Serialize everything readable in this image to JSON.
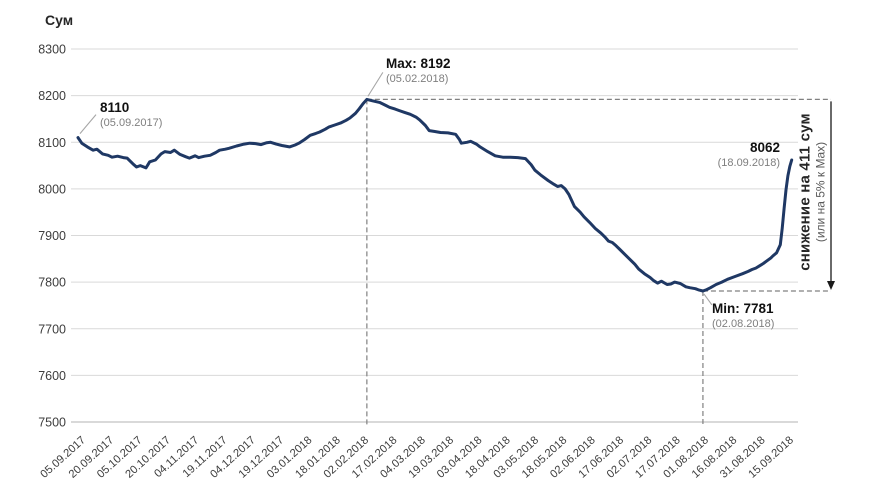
{
  "chart_data": {
    "type": "line",
    "title": "",
    "ylabel": "Сум",
    "xlabel": "",
    "ylim": [
      7500,
      8300
    ],
    "y_ticks": [
      8300,
      8200,
      8100,
      8000,
      7900,
      7800,
      7700,
      7600,
      7500
    ],
    "x_tick_interval_days": 15,
    "x_tick_labels": [
      "05.09.2017",
      "20.09.2017",
      "05.10.2017",
      "20.10.2017",
      "04.11.2017",
      "19.11.2017",
      "04.12.2017",
      "19.12.2017",
      "03.01.2018",
      "18.01.2018",
      "02.02.2018",
      "17.02.2018",
      "04.03.2018",
      "19.03.2018",
      "03.04.2018",
      "18.04.2018",
      "03.05.2018",
      "18.05.2018",
      "02.06.2018",
      "17.06.2018",
      "02.07.2018",
      "17.07.2018",
      "01.08.2018",
      "16.08.2018",
      "31.08.2018",
      "15.09.2018"
    ],
    "grid": "horizontal",
    "legend": "none",
    "series": [
      {
        "name": "Сум",
        "color": "#1f3864",
        "points": [
          [
            0,
            8110
          ],
          [
            2,
            8098
          ],
          [
            5,
            8090
          ],
          [
            8,
            8083
          ],
          [
            10,
            8085
          ],
          [
            13,
            8075
          ],
          [
            16,
            8072
          ],
          [
            18,
            8068
          ],
          [
            21,
            8070
          ],
          [
            24,
            8067
          ],
          [
            26,
            8066
          ],
          [
            29,
            8054
          ],
          [
            31,
            8047
          ],
          [
            33,
            8050
          ],
          [
            36,
            8045
          ],
          [
            38,
            8058
          ],
          [
            41,
            8062
          ],
          [
            44,
            8075
          ],
          [
            46,
            8080
          ],
          [
            49,
            8078
          ],
          [
            51,
            8083
          ],
          [
            54,
            8074
          ],
          [
            57,
            8069
          ],
          [
            59,
            8066
          ],
          [
            62,
            8071
          ],
          [
            64,
            8067
          ],
          [
            67,
            8070
          ],
          [
            70,
            8072
          ],
          [
            73,
            8078
          ],
          [
            75,
            8083
          ],
          [
            78,
            8085
          ],
          [
            80,
            8087
          ],
          [
            84,
            8092
          ],
          [
            88,
            8096
          ],
          [
            91,
            8098
          ],
          [
            94,
            8097
          ],
          [
            97,
            8095
          ],
          [
            100,
            8099
          ],
          [
            102,
            8100
          ],
          [
            105,
            8096
          ],
          [
            108,
            8093
          ],
          [
            112,
            8090
          ],
          [
            115,
            8094
          ],
          [
            117,
            8098
          ],
          [
            120,
            8106
          ],
          [
            123,
            8115
          ],
          [
            126,
            8119
          ],
          [
            128,
            8122
          ],
          [
            131,
            8128
          ],
          [
            133,
            8133
          ],
          [
            136,
            8137
          ],
          [
            139,
            8141
          ],
          [
            142,
            8147
          ],
          [
            144,
            8152
          ],
          [
            147,
            8162
          ],
          [
            149,
            8172
          ],
          [
            151,
            8183
          ],
          [
            153,
            8192
          ],
          [
            156,
            8189
          ],
          [
            160,
            8185
          ],
          [
            163,
            8179
          ],
          [
            165,
            8175
          ],
          [
            168,
            8171
          ],
          [
            170,
            8168
          ],
          [
            173,
            8164
          ],
          [
            176,
            8160
          ],
          [
            179,
            8154
          ],
          [
            181,
            8148
          ],
          [
            184,
            8136
          ],
          [
            186,
            8125
          ],
          [
            189,
            8123
          ],
          [
            192,
            8121
          ],
          [
            196,
            8120
          ],
          [
            200,
            8117
          ],
          [
            202,
            8106
          ],
          [
            203,
            8098
          ],
          [
            206,
            8100
          ],
          [
            208,
            8102
          ],
          [
            211,
            8096
          ],
          [
            213,
            8090
          ],
          [
            217,
            8080
          ],
          [
            221,
            8071
          ],
          [
            225,
            8068
          ],
          [
            229,
            8068
          ],
          [
            233,
            8067
          ],
          [
            237,
            8065
          ],
          [
            240,
            8052
          ],
          [
            242,
            8040
          ],
          [
            245,
            8030
          ],
          [
            249,
            8018
          ],
          [
            252,
            8010
          ],
          [
            254,
            8005
          ],
          [
            256,
            8007
          ],
          [
            258,
            8000
          ],
          [
            260,
            7988
          ],
          [
            263,
            7962
          ],
          [
            266,
            7950
          ],
          [
            268,
            7940
          ],
          [
            271,
            7928
          ],
          [
            274,
            7915
          ],
          [
            277,
            7905
          ],
          [
            279,
            7897
          ],
          [
            281,
            7888
          ],
          [
            283,
            7885
          ],
          [
            285,
            7878
          ],
          [
            287,
            7870
          ],
          [
            290,
            7858
          ],
          [
            292,
            7850
          ],
          [
            295,
            7838
          ],
          [
            297,
            7828
          ],
          [
            300,
            7818
          ],
          [
            303,
            7810
          ],
          [
            305,
            7803
          ],
          [
            307,
            7798
          ],
          [
            309,
            7802
          ],
          [
            312,
            7795
          ],
          [
            314,
            7796
          ],
          [
            316,
            7800
          ],
          [
            319,
            7797
          ],
          [
            322,
            7790
          ],
          [
            324,
            7788
          ],
          [
            327,
            7786
          ],
          [
            329,
            7783
          ],
          [
            331,
            7781
          ],
          [
            333,
            7784
          ],
          [
            335,
            7788
          ],
          [
            338,
            7795
          ],
          [
            341,
            7800
          ],
          [
            344,
            7806
          ],
          [
            348,
            7812
          ],
          [
            352,
            7818
          ],
          [
            355,
            7823
          ],
          [
            357,
            7827
          ],
          [
            359,
            7830
          ],
          [
            361,
            7835
          ],
          [
            363,
            7840
          ],
          [
            365,
            7846
          ],
          [
            367,
            7852
          ],
          [
            368,
            7856
          ],
          [
            370,
            7863
          ],
          [
            372,
            7880
          ],
          [
            373,
            7915
          ],
          [
            374,
            7958
          ],
          [
            375,
            7998
          ],
          [
            376,
            8028
          ],
          [
            377,
            8048
          ],
          [
            378,
            8062
          ]
        ]
      }
    ],
    "annotations": {
      "start": {
        "value": "8110",
        "date": "(05.09.2017)",
        "day": 0,
        "val": 8110
      },
      "max": {
        "label": "Max: 8192",
        "date": "(05.02.2018)",
        "day": 153,
        "val": 8192
      },
      "min": {
        "label": "Min: 7781",
        "date": "(02.08.2018)",
        "day": 331,
        "val": 7781
      },
      "end": {
        "value": "8062",
        "date": "(18.09.2018)",
        "day": 378,
        "val": 8062
      },
      "decline_note_line1": "снижение на 411 сум",
      "decline_note_line2": "(или на 5% к Max)"
    },
    "colors": {
      "line": "#1f3864",
      "grid": "#d9d9d9",
      "grid_bottom": "#b3b3b3",
      "axis_text": "#3d3d3d",
      "dash": "#808080",
      "connector": "#a6a6a6",
      "arrow": "#1a1a1a"
    }
  }
}
